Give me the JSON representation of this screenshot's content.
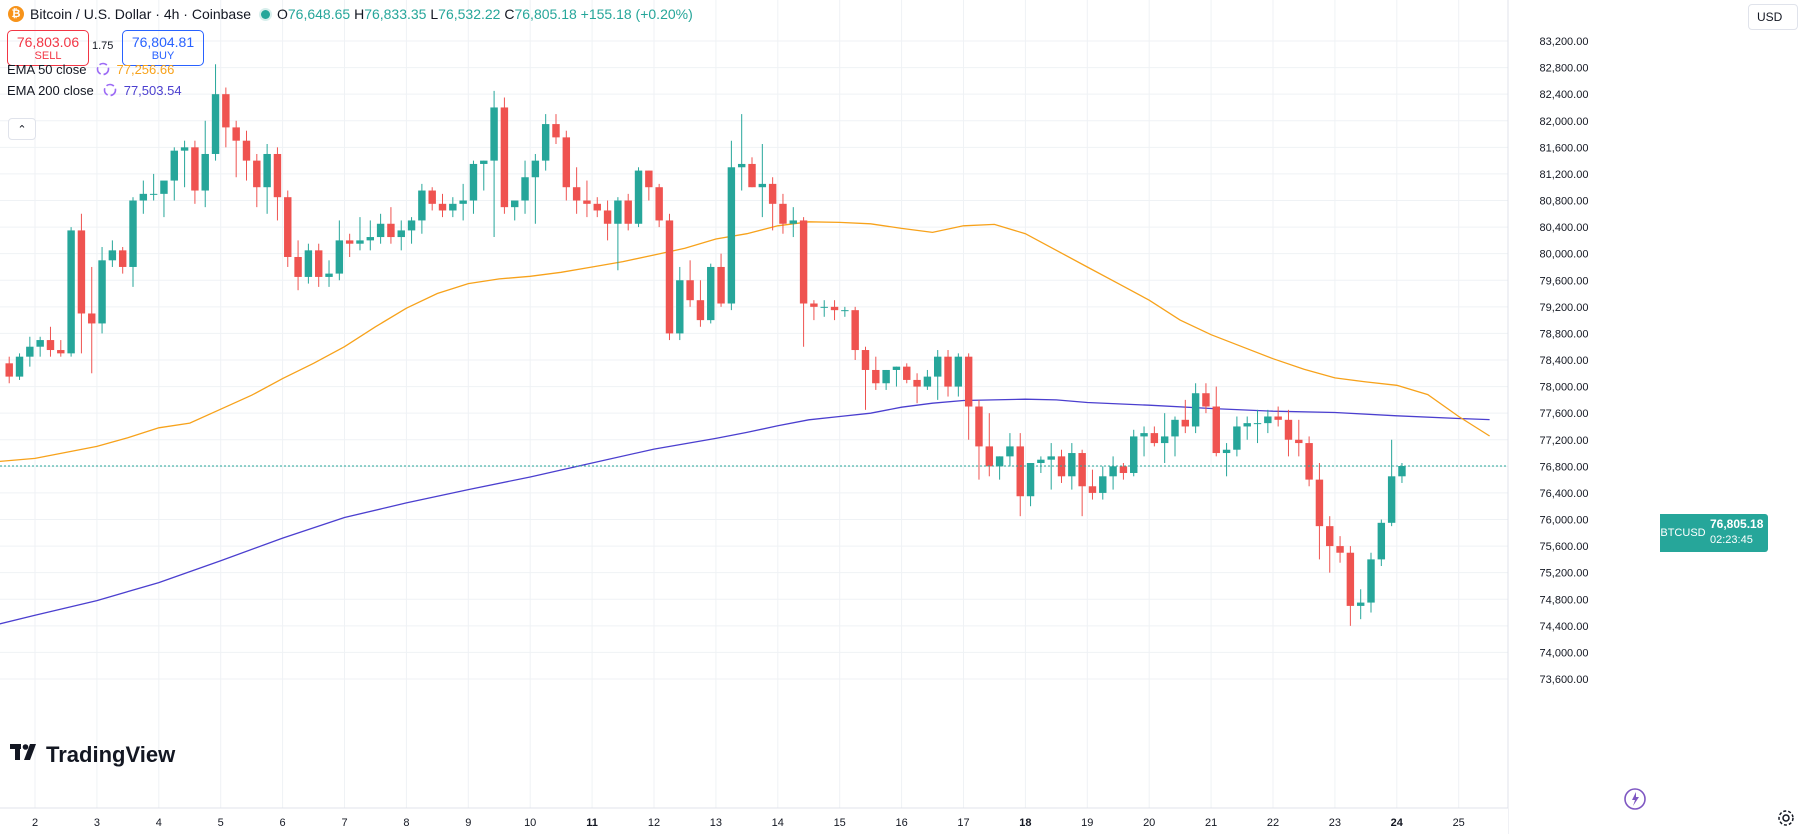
{
  "header": {
    "title": "Bitcoin / U.S. Dollar · 4h · Coinbase",
    "coin_icon": "bitcoin-icon",
    "ohlc": {
      "o_label": "O",
      "o": "76,648.65",
      "h_label": "H",
      "h": "76,833.35",
      "l_label": "L",
      "l": "76,532.22",
      "c_label": "C",
      "c": "76,805.18",
      "change": "+155.18 (+0.20%)"
    }
  },
  "trade": {
    "sell_price": "76,803.06",
    "sell_label": "SELL",
    "buy_price": "76,804.81",
    "buy_label": "BUY",
    "spread": "1.75"
  },
  "indicators": [
    {
      "label": "EMA 50 close",
      "value": "77,256.66",
      "color": "#f7a21b"
    },
    {
      "label": "EMA 200 close",
      "value": "77,503.54",
      "color": "#4b3fcf"
    }
  ],
  "toolbar": {
    "currency": "USD",
    "collapse_icon": "chevron-up-icon",
    "settings_icon": "gear-icon"
  },
  "price_tag": {
    "symbol": "BTCUSD",
    "price": "76,805.18",
    "countdown": "02:23:45"
  },
  "branding": {
    "logo": "TradingView"
  },
  "colors": {
    "up": "#26a69a",
    "down": "#ef5350",
    "grid": "#eff2f5",
    "ema50": "#f7a21b",
    "ema200": "#4b3fcf"
  },
  "chart_data": {
    "type": "candlestick",
    "ylim": [
      73400,
      83400
    ],
    "y_ticks": [
      "83,200.00",
      "82,800.00",
      "82,400.00",
      "82,000.00",
      "81,600.00",
      "81,200.00",
      "80,800.00",
      "80,400.00",
      "80,000.00",
      "79,600.00",
      "79,200.00",
      "78,800.00",
      "78,400.00",
      "78,000.00",
      "77,600.00",
      "77,200.00",
      "76,800.00",
      "76,400.00",
      "76,000.00",
      "75,600.00",
      "75,200.00",
      "74,800.00",
      "74,400.00",
      "74,000.00",
      "73,600.00"
    ],
    "y_tick_values": [
      83200,
      82800,
      82400,
      82000,
      81600,
      81200,
      80800,
      80400,
      80000,
      79600,
      79200,
      78800,
      78400,
      78000,
      77600,
      77200,
      76800,
      76400,
      76000,
      75600,
      75200,
      74800,
      74400,
      74000,
      73600
    ],
    "x_labels": [
      "2",
      "3",
      "4",
      "5",
      "6",
      "7",
      "8",
      "9",
      "10",
      "11",
      "12",
      "13",
      "14",
      "15",
      "16",
      "17",
      "18",
      "19",
      "20",
      "21",
      "22",
      "23",
      "24",
      "25"
    ],
    "x_label_bold": [
      "11",
      "18",
      "24"
    ],
    "bars_per_day": 6,
    "first_bar_offset_days": -2,
    "last_price": 76805.18,
    "candles": [
      [
        78250,
        78920,
        77400,
        78420
      ],
      [
        78420,
        78600,
        77700,
        78200
      ],
      [
        78200,
        78400,
        78000,
        78300
      ],
      [
        78300,
        78500,
        78050,
        78150
      ],
      [
        78150,
        78350,
        77950,
        78280
      ],
      [
        78280,
        78500,
        78050,
        78100
      ],
      [
        78100,
        78350,
        78000,
        78320
      ],
      [
        78320,
        78700,
        78200,
        78550
      ],
      [
        78550,
        79150,
        78200,
        78350
      ],
      [
        78350,
        78450,
        78050,
        78150
      ],
      [
        78150,
        78500,
        78100,
        78450
      ],
      [
        78450,
        78750,
        78300,
        78600
      ],
      [
        78600,
        78750,
        78450,
        78700
      ],
      [
        78700,
        78900,
        78450,
        78550
      ],
      [
        78550,
        78700,
        78450,
        78500
      ],
      [
        78500,
        80400,
        78450,
        80350
      ],
      [
        80350,
        80600,
        78500,
        79100
      ],
      [
        79100,
        79800,
        78200,
        78950
      ],
      [
        78950,
        80100,
        78800,
        79900
      ],
      [
        79900,
        80200,
        79800,
        80050
      ],
      [
        80050,
        80100,
        79700,
        79800
      ],
      [
        79800,
        80850,
        79500,
        80800
      ],
      [
        80800,
        81100,
        80600,
        80900
      ],
      [
        80900,
        81200,
        80800,
        80900
      ],
      [
        80900,
        81000,
        80550,
        81100
      ],
      [
        81100,
        81600,
        80800,
        81550
      ],
      [
        81550,
        81700,
        81000,
        81600
      ],
      [
        81600,
        81700,
        80750,
        80950
      ],
      [
        80950,
        82000,
        80700,
        81500
      ],
      [
        81500,
        82850,
        81400,
        82400
      ],
      [
        82400,
        82500,
        81600,
        81900
      ],
      [
        81900,
        82000,
        81150,
        81700
      ],
      [
        81700,
        81850,
        81100,
        81400
      ],
      [
        81400,
        81500,
        80700,
        81000
      ],
      [
        81000,
        81650,
        80600,
        81500
      ],
      [
        81500,
        81600,
        80500,
        80850
      ],
      [
        80850,
        80950,
        79800,
        79950
      ],
      [
        79950,
        80200,
        79450,
        79650
      ],
      [
        79650,
        80150,
        79550,
        80050
      ],
      [
        80050,
        80150,
        79500,
        79650
      ],
      [
        79650,
        79900,
        79500,
        79700
      ],
      [
        79700,
        80500,
        79600,
        80200
      ],
      [
        80200,
        80300,
        79950,
        80150
      ],
      [
        80150,
        80550,
        80050,
        80200
      ],
      [
        80200,
        80500,
        80050,
        80250
      ],
      [
        80250,
        80600,
        80150,
        80450
      ],
      [
        80450,
        80700,
        80150,
        80250
      ],
      [
        80250,
        80500,
        80050,
        80350
      ],
      [
        80350,
        80550,
        80150,
        80500
      ],
      [
        80500,
        81050,
        80300,
        80950
      ],
      [
        80950,
        81000,
        80650,
        80750
      ],
      [
        80750,
        80900,
        80550,
        80650
      ],
      [
        80650,
        80850,
        80550,
        80750
      ],
      [
        80750,
        81050,
        80500,
        80800
      ],
      [
        80800,
        81400,
        80600,
        81350
      ],
      [
        81350,
        81400,
        80950,
        81400
      ],
      [
        81400,
        82450,
        80250,
        82200
      ],
      [
        82200,
        82350,
        80600,
        80700
      ],
      [
        80700,
        80800,
        80500,
        80800
      ],
      [
        80800,
        81400,
        80600,
        81150
      ],
      [
        81150,
        81500,
        80450,
        81400
      ],
      [
        81400,
        82100,
        81250,
        81950
      ],
      [
        81950,
        82100,
        81650,
        81750
      ],
      [
        81750,
        81850,
        80800,
        81000
      ],
      [
        81000,
        81300,
        80600,
        80800
      ],
      [
        80800,
        81100,
        80550,
        80750
      ],
      [
        80750,
        80850,
        80550,
        80650
      ],
      [
        80650,
        80800,
        80200,
        80450
      ],
      [
        80450,
        80850,
        79750,
        80800
      ],
      [
        80800,
        80900,
        80350,
        80450
      ],
      [
        80450,
        81300,
        80400,
        81250
      ],
      [
        81250,
        81250,
        80800,
        81000
      ],
      [
        81000,
        81050,
        80400,
        80500
      ],
      [
        80500,
        80600,
        78700,
        78800
      ],
      [
        78800,
        79800,
        78700,
        79600
      ],
      [
        79600,
        79900,
        79200,
        79300
      ],
      [
        79300,
        79600,
        78900,
        79000
      ],
      [
        79000,
        79850,
        78950,
        79800
      ],
      [
        79800,
        80000,
        79200,
        79250
      ],
      [
        79250,
        81700,
        79150,
        81300
      ],
      [
        81300,
        82100,
        80950,
        81350
      ],
      [
        81350,
        81450,
        81000,
        81000
      ],
      [
        81000,
        81650,
        80550,
        81050
      ],
      [
        81050,
        81150,
        80350,
        80750
      ],
      [
        80750,
        80900,
        80300,
        80450
      ],
      [
        80450,
        80700,
        80250,
        80500
      ],
      [
        80500,
        80550,
        78600,
        79250
      ],
      [
        79250,
        79300,
        79000,
        79200
      ],
      [
        79200,
        79300,
        79050,
        79200
      ],
      [
        79200,
        79300,
        79000,
        79150
      ],
      [
        79150,
        79200,
        79050,
        79150
      ],
      [
        79150,
        79200,
        78400,
        78550
      ],
      [
        78550,
        78600,
        77650,
        78250
      ],
      [
        78250,
        78450,
        77950,
        78050
      ],
      [
        78050,
        78250,
        77950,
        78250
      ],
      [
        78250,
        78300,
        78000,
        78300
      ],
      [
        78300,
        78350,
        78050,
        78100
      ],
      [
        78100,
        78200,
        77750,
        78000
      ],
      [
        78000,
        78250,
        77950,
        78150
      ],
      [
        78150,
        78550,
        77800,
        78450
      ],
      [
        78450,
        78550,
        77850,
        78000
      ],
      [
        78000,
        78500,
        77850,
        78450
      ],
      [
        78450,
        78500,
        77200,
        77700
      ],
      [
        77700,
        77800,
        76600,
        77100
      ],
      [
        77100,
        77600,
        76650,
        76800
      ],
      [
        76800,
        76950,
        76600,
        76950
      ],
      [
        76950,
        77300,
        76800,
        77100
      ],
      [
        77100,
        77300,
        76050,
        76350
      ],
      [
        76350,
        76850,
        76200,
        76850
      ],
      [
        76850,
        76950,
        76700,
        76900
      ],
      [
        76900,
        77150,
        76450,
        76950
      ],
      [
        76950,
        77050,
        76550,
        76650
      ],
      [
        76650,
        77150,
        76450,
        77000
      ],
      [
        77000,
        77050,
        76050,
        76500
      ],
      [
        76500,
        76750,
        76300,
        76400
      ],
      [
        76400,
        76800,
        76300,
        76650
      ],
      [
        76650,
        76950,
        76450,
        76800
      ],
      [
        76800,
        76850,
        76600,
        76700
      ],
      [
        76700,
        77350,
        76650,
        77250
      ],
      [
        77250,
        77400,
        76950,
        77300
      ],
      [
        77300,
        77400,
        77100,
        77150
      ],
      [
        77150,
        77600,
        76850,
        77250
      ],
      [
        77250,
        77550,
        76950,
        77500
      ],
      [
        77500,
        77800,
        77300,
        77400
      ],
      [
        77400,
        78050,
        77300,
        77900
      ],
      [
        77900,
        78050,
        77600,
        77700
      ],
      [
        77700,
        78000,
        76950,
        77000
      ],
      [
        77000,
        77150,
        76650,
        77050
      ],
      [
        77050,
        77550,
        76950,
        77400
      ],
      [
        77400,
        77550,
        77200,
        77450
      ],
      [
        77450,
        77650,
        77150,
        77450
      ],
      [
        77450,
        77650,
        77300,
        77550
      ],
      [
        77550,
        77700,
        77400,
        77500
      ],
      [
        77500,
        77650,
        76950,
        77200
      ],
      [
        77200,
        77500,
        76950,
        77150
      ],
      [
        77150,
        77250,
        76500,
        76600
      ],
      [
        76600,
        76850,
        75400,
        75900
      ],
      [
        75900,
        76050,
        75200,
        75600
      ],
      [
        75600,
        75750,
        75350,
        75500
      ],
      [
        75500,
        75600,
        74400,
        74700
      ],
      [
        74700,
        74950,
        74500,
        74750
      ],
      [
        74750,
        75500,
        74600,
        75400
      ],
      [
        75400,
        76000,
        75300,
        75950
      ],
      [
        75950,
        77200,
        75900,
        76650
      ],
      [
        76650,
        76850,
        76550,
        76805
      ]
    ],
    "ema50": [
      [
        -1,
        76840
      ],
      [
        0,
        76920
      ],
      [
        0.5,
        77010
      ],
      [
        1,
        77100
      ],
      [
        1.5,
        77230
      ],
      [
        2,
        77380
      ],
      [
        2.5,
        77450
      ],
      [
        3,
        77660
      ],
      [
        3.5,
        77870
      ],
      [
        4,
        78120
      ],
      [
        4.5,
        78350
      ],
      [
        5,
        78600
      ],
      [
        5.5,
        78900
      ],
      [
        6,
        79180
      ],
      [
        6.5,
        79400
      ],
      [
        7,
        79550
      ],
      [
        7.5,
        79620
      ],
      [
        8,
        79660
      ],
      [
        8.5,
        79720
      ],
      [
        9,
        79800
      ],
      [
        9.5,
        79880
      ],
      [
        10,
        79980
      ],
      [
        10.5,
        80080
      ],
      [
        11,
        80220
      ],
      [
        11.5,
        80300
      ],
      [
        12,
        80420
      ],
      [
        12.5,
        80480
      ],
      [
        13,
        80470
      ],
      [
        13.5,
        80450
      ],
      [
        14,
        80380
      ],
      [
        14.5,
        80320
      ],
      [
        15,
        80420
      ],
      [
        15.5,
        80440
      ],
      [
        16,
        80300
      ],
      [
        16.5,
        80050
      ],
      [
        17,
        79800
      ],
      [
        17.5,
        79550
      ],
      [
        18,
        79300
      ],
      [
        18.5,
        79000
      ],
      [
        19,
        78780
      ],
      [
        19.5,
        78600
      ],
      [
        20,
        78420
      ],
      [
        20.5,
        78260
      ],
      [
        21,
        78130
      ],
      [
        21.5,
        78070
      ],
      [
        22,
        78020
      ],
      [
        22.5,
        77880
      ],
      [
        23,
        77550
      ],
      [
        23.5,
        77256.66
      ]
    ],
    "ema200": [
      [
        -1,
        74330
      ],
      [
        0,
        74560
      ],
      [
        1,
        74780
      ],
      [
        2,
        75050
      ],
      [
        3,
        75380
      ],
      [
        4,
        75720
      ],
      [
        5,
        76030
      ],
      [
        6,
        76250
      ],
      [
        7,
        76450
      ],
      [
        8,
        76640
      ],
      [
        9,
        76850
      ],
      [
        10,
        77060
      ],
      [
        11,
        77220
      ],
      [
        11.5,
        77310
      ],
      [
        12,
        77410
      ],
      [
        12.5,
        77500
      ],
      [
        13,
        77550
      ],
      [
        13.5,
        77600
      ],
      [
        14,
        77690
      ],
      [
        14.5,
        77750
      ],
      [
        15,
        77790
      ],
      [
        16,
        77810
      ],
      [
        16.5,
        77800
      ],
      [
        17,
        77760
      ],
      [
        18,
        77720
      ],
      [
        19,
        77670
      ],
      [
        20,
        77630
      ],
      [
        21,
        77610
      ],
      [
        22,
        77560
      ],
      [
        23,
        77520
      ],
      [
        23.5,
        77503.54
      ]
    ]
  }
}
